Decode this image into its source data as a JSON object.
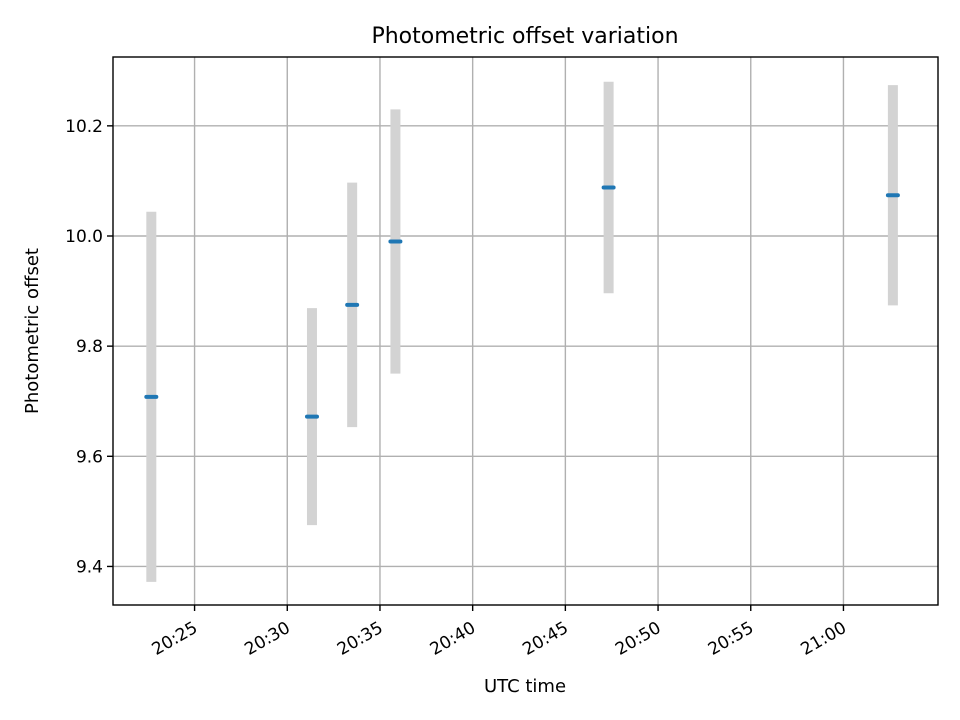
{
  "chart_data": {
    "type": "scatter",
    "title": "Photometric offset variation",
    "xlabel": "UTC time",
    "ylabel": "Photometric offset",
    "x_ticks": [
      "20:25",
      "20:30",
      "20:35",
      "20:40",
      "20:45",
      "20:50",
      "20:55",
      "21:00"
    ],
    "x_tick_minutes": [
      1225,
      1230,
      1235,
      1240,
      1245,
      1250,
      1255,
      1260
    ],
    "xlim_minutes": [
      1220.6,
      1265.1
    ],
    "y_ticks": [
      "9.4",
      "9.6",
      "9.8",
      "10.0",
      "10.2"
    ],
    "y_tick_values": [
      9.4,
      9.6,
      9.8,
      10.0,
      10.2
    ],
    "ylim": [
      9.33,
      10.325
    ],
    "grid": true,
    "series": [
      {
        "points": [
          {
            "time": "20:22:40",
            "y": 9.708,
            "err": 0.336
          },
          {
            "time": "20:31:20",
            "y": 9.672,
            "err": 0.197
          },
          {
            "time": "20:33:30",
            "y": 9.875,
            "err": 0.222
          },
          {
            "time": "20:35:50",
            "y": 9.99,
            "err": 0.24
          },
          {
            "time": "20:47:20",
            "y": 10.088,
            "err": 0.192
          },
          {
            "time": "21:02:40",
            "y": 10.074,
            "err": 0.2
          }
        ],
        "color": "#1f77b4",
        "error_color": "#d3d3d3"
      }
    ]
  }
}
